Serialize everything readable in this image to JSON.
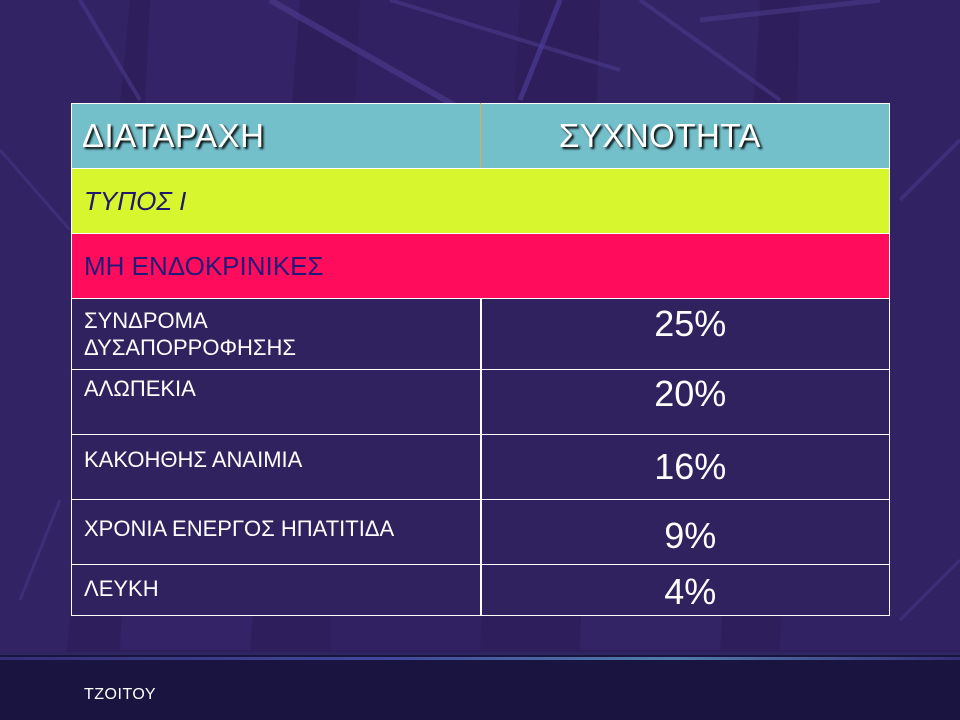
{
  "table": {
    "header": {
      "col1": "ΔΙΑΤΑΡΑΧΗ",
      "col2": "ΣΥΧΝΟΤΗΤΑ"
    },
    "section_type": "ΤΥΠΟΣ Ι",
    "section_group": "ΜΗ ΕΝΔΟΚΡΙΝΙΚΕΣ",
    "rows": [
      {
        "label_line1": "ΣΥΝΔΡΟΜΑ",
        "label_line2": "ΔΥΣΑΠΟΡΡΟΦΗΣΗΣ",
        "value": "25%"
      },
      {
        "label": "ΑΛΩΠΕΚΙΑ",
        "value": "20%"
      },
      {
        "label": "ΚΑΚΟΗΘΗΣ ΑΝΑΙΜΙΑ",
        "value": "16%"
      },
      {
        "label": "ΧΡΟΝΙΑ ΕΝΕΡΓΟΣ ΗΠΑΤΙΤΙΔΑ",
        "value": "9%"
      },
      {
        "label": "ΛΕΥΚΗ",
        "value": "4%"
      }
    ]
  },
  "footer": {
    "author": "ΤΖΟΙΤΟΥ"
  },
  "colors": {
    "background": "#2e1f5c",
    "header_bg": "#73bfca",
    "type_row_bg": "#d8f62d",
    "group_row_bg": "#ff0c5c",
    "border_accent": "#e7a84e"
  }
}
